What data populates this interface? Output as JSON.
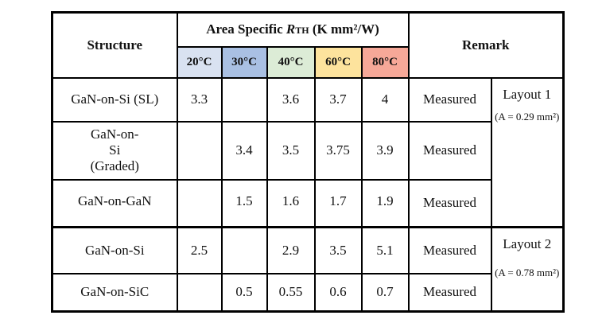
{
  "header": {
    "structure": "Structure",
    "rth_prefix": "Area Specific ",
    "rth_symbol": "R",
    "rth_sub": "TH",
    "rth_unit": " (K mm²/W)",
    "remark": "Remark",
    "temps": [
      "20°C",
      "30°C",
      "40°C",
      "60°C",
      "80°C"
    ],
    "temp_colors": [
      "#d9e2f1",
      "#a9c0e3",
      "#dcecd6",
      "#fde39d",
      "#f6a898"
    ]
  },
  "rows": [
    {
      "structure": "GaN-on-Si (SL)",
      "values": [
        "3.3",
        "",
        "3.6",
        "3.7",
        "4"
      ],
      "remark": "Measured"
    },
    {
      "structure": "GaN-on-Si (Graded)",
      "values": [
        "",
        "3.4",
        "3.5",
        "3.75",
        "3.9"
      ],
      "remark": "Measured"
    },
    {
      "structure": "GaN-on-GaN",
      "values": [
        "",
        "1.5",
        "1.6",
        "1.7",
        "1.9"
      ],
      "remark": "Measured"
    },
    {
      "structure": "GaN-on-Si",
      "values": [
        "2.5",
        "",
        "2.9",
        "3.5",
        "5.1"
      ],
      "remark": "Measured"
    },
    {
      "structure": "GaN-on-SiC",
      "values": [
        "",
        "0.5",
        "0.55",
        "0.6",
        "0.7"
      ],
      "remark": "Measured"
    }
  ],
  "layouts": [
    {
      "label": "Layout 1",
      "area": "(A = 0.29 mm²)"
    },
    {
      "label": "Layout 2",
      "area": "(A = 0.78 mm²)"
    }
  ]
}
